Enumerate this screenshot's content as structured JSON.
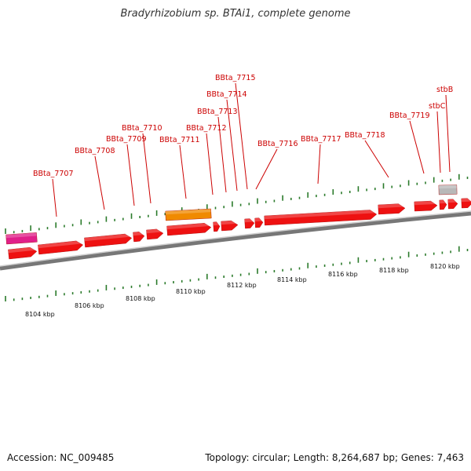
{
  "title": "Bradyrhizobium sp. BTAi1, complete genome",
  "footer": {
    "accession": "Accession: NC_009485",
    "topology": "Topology: circular; Length: 8,264,687 bp; Genes: 7,463"
  },
  "colors": {
    "gene_red": "#ee1111",
    "gene_magenta": "#e0208a",
    "gene_orange": "#f08a00",
    "gene_gray": "#b8b8b8",
    "label_red": "#cc0000",
    "tick_green": "#2a7a2a",
    "backbone": "#777777"
  },
  "gene_labels": [
    {
      "text": "BBta_7707"
    },
    {
      "text": "BBta_7708"
    },
    {
      "text": "BBta_7709"
    },
    {
      "text": "BBta_7710"
    },
    {
      "text": "BBta_7711"
    },
    {
      "text": "BBta_7712"
    },
    {
      "text": "BBta_7713"
    },
    {
      "text": "BBta_7714"
    },
    {
      "text": "BBta_7715"
    },
    {
      "text": "BBta_7716"
    },
    {
      "text": "BBta_7717"
    },
    {
      "text": "BBta_7718"
    },
    {
      "text": "BBta_7719"
    },
    {
      "text": "stbC"
    },
    {
      "text": "stbB"
    }
  ],
  "scale_labels": [
    {
      "text": "8104 kbp"
    },
    {
      "text": "8106 kbp"
    },
    {
      "text": "8108 kbp"
    },
    {
      "text": "8110 kbp"
    },
    {
      "text": "8112 kbp"
    },
    {
      "text": "8114 kbp"
    },
    {
      "text": "8116 kbp"
    },
    {
      "text": "8118 kbp"
    },
    {
      "text": "8120 kbp"
    }
  ]
}
